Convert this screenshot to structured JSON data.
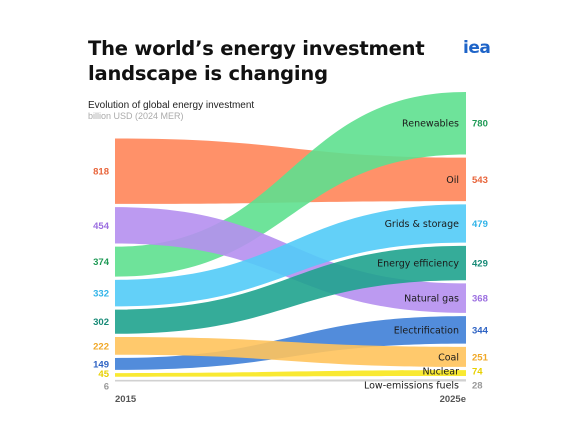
{
  "title": "The world’s energy investment landscape is changing",
  "subtitle": "Evolution of global energy investment",
  "units": "billion USD (2024 MER)",
  "logo": "iea",
  "chart_data": {
    "type": "area",
    "subtype": "stacked-ranking-flow",
    "x": [
      "2015",
      "2025e"
    ],
    "series": [
      {
        "name": "Renewables",
        "start": 374,
        "end": 780,
        "color": "#5ee08f",
        "label_color": "#1e9a55"
      },
      {
        "name": "Oil",
        "start": 818,
        "end": 543,
        "color": "#ff8559",
        "label_color": "#e8643a"
      },
      {
        "name": "Grids & storage",
        "start": 332,
        "end": 479,
        "color": "#52cbf7",
        "label_color": "#2fb3e8"
      },
      {
        "name": "Energy efficiency",
        "start": 302,
        "end": 429,
        "color": "#1fa38e",
        "label_color": "#178a77"
      },
      {
        "name": "Natural gas",
        "start": 454,
        "end": 368,
        "color": "#b58ff0",
        "label_color": "#9b6ee0"
      },
      {
        "name": "Electrification",
        "start": 149,
        "end": 344,
        "color": "#3f7fd7",
        "label_color": "#2e63c4"
      },
      {
        "name": "Coal",
        "start": 222,
        "end": 251,
        "color": "#ffc35c",
        "label_color": "#f0a828"
      },
      {
        "name": "Nuclear",
        "start": 45,
        "end": 74,
        "color": "#f8e71c",
        "label_color": "#e8d000"
      },
      {
        "name": "Low-emissions fuels",
        "start": 6,
        "end": 28,
        "color": "#cccccc",
        "label_color": "#999999"
      }
    ]
  }
}
